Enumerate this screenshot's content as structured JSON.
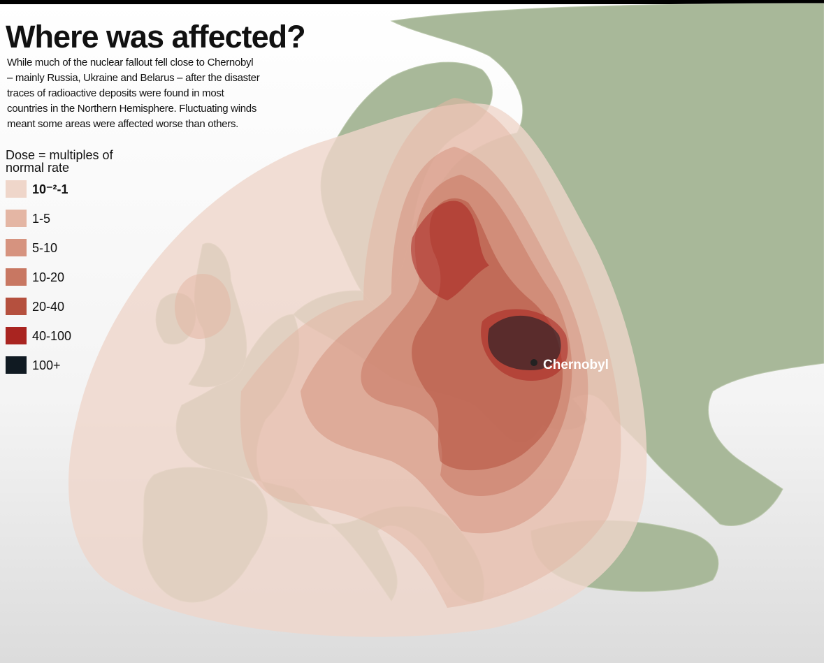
{
  "header": {
    "title": "Where was affected?",
    "description_lines": [
      "While much of the nuclear fallout fell close to Chernobyl",
      "– mainly Russia, Ukraine and Belarus – after the disaster",
      "traces of radioactive deposits were found in most",
      "countries in the Northern Hemisphere. Fluctuating winds",
      "meant some areas were affected worse than others."
    ]
  },
  "legend": {
    "title_lines": [
      "Dose = multiples of",
      "normal rate"
    ],
    "items": [
      {
        "label": "10⁻²-1",
        "color": "#efd6ca"
      },
      {
        "label": "1-5",
        "color": "#e4b6a4"
      },
      {
        "label": "5-10",
        "color": "#d6937f"
      },
      {
        "label": "10-20",
        "color": "#c87762"
      },
      {
        "label": "20-40",
        "color": "#b5503e"
      },
      {
        "label": "40-100",
        "color": "#a92420"
      },
      {
        "label": "100+",
        "color": "#101a22"
      }
    ]
  },
  "map": {
    "marker_label": "Chernobyl"
  }
}
